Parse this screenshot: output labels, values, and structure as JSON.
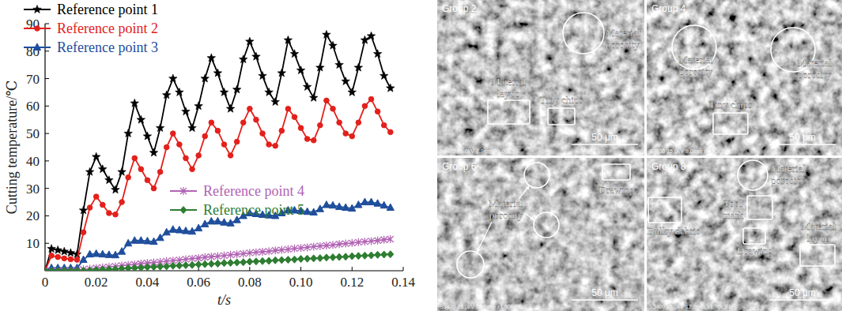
{
  "chart_data": {
    "type": "line",
    "x_label": "t/s",
    "y_label": "Cutting temperature/℃",
    "x": [
      0,
      0.0025,
      0.005,
      0.0075,
      0.01,
      0.0125,
      0.015,
      0.0175,
      0.02,
      0.0225,
      0.025,
      0.0275,
      0.03,
      0.0325,
      0.035,
      0.0375,
      0.04,
      0.0425,
      0.045,
      0.0475,
      0.05,
      0.0525,
      0.055,
      0.0575,
      0.06,
      0.0625,
      0.065,
      0.0675,
      0.07,
      0.0725,
      0.075,
      0.0775,
      0.08,
      0.0825,
      0.085,
      0.0875,
      0.09,
      0.0925,
      0.095,
      0.0975,
      0.1,
      0.1025,
      0.105,
      0.1075,
      0.11,
      0.1125,
      0.115,
      0.1175,
      0.12,
      0.1225,
      0.125,
      0.1275,
      0.13,
      0.1325,
      0.135
    ],
    "series": [
      {
        "name": "Reference point 1",
        "color": "#000000",
        "marker": "star",
        "values": [
          0,
          8,
          7.5,
          7,
          6.5,
          6,
          22,
          36,
          41.5,
          37,
          33,
          29.5,
          36,
          50,
          61,
          55,
          49,
          43,
          52,
          64,
          70,
          65,
          58,
          52,
          60,
          70,
          77.5,
          72,
          65,
          59,
          66,
          77,
          83.5,
          78,
          71,
          65,
          61.5,
          72,
          84,
          79,
          73,
          67,
          63,
          74,
          86,
          82,
          75,
          69,
          65,
          74,
          84,
          85.5,
          79,
          71,
          66.5
        ]
      },
      {
        "name": "Reference point 2",
        "color": "#e3201b",
        "marker": "circle",
        "values": [
          0,
          5.5,
          5,
          4.5,
          4.2,
          4,
          14,
          23,
          27,
          24,
          21,
          20.5,
          25,
          34,
          41,
          37,
          33,
          30,
          36,
          45,
          50,
          46,
          41,
          37,
          42,
          49,
          54,
          51,
          46,
          42,
          47,
          54,
          59,
          55,
          50,
          46,
          45.5,
          51,
          59,
          56,
          52,
          48,
          47.5,
          53,
          62,
          59,
          54,
          50,
          49,
          54,
          60,
          62.5,
          58,
          53,
          50.5
        ]
      },
      {
        "name": "Reference point 3",
        "color": "#1f4e9c",
        "marker": "triangle",
        "values": [
          0,
          1,
          1,
          1,
          1,
          1,
          4,
          6,
          6.2,
          6,
          5.8,
          5.7,
          7,
          10,
          11,
          11,
          10.8,
          10.6,
          12,
          14,
          15,
          14.8,
          14.5,
          14.3,
          15.5,
          17,
          18,
          18,
          17.6,
          17.3,
          18.5,
          20,
          21,
          20.7,
          20.4,
          20.2,
          20,
          21,
          22,
          22,
          21.8,
          21.5,
          21.3,
          22.5,
          24,
          23.8,
          23.3,
          23,
          22.7,
          24,
          25,
          25,
          24.5,
          23.8,
          23
        ]
      },
      {
        "name": "Reference point 4",
        "color": "#b163b4",
        "marker": "asterisk",
        "values": [
          0,
          0,
          0,
          0,
          0,
          0.2,
          0.5,
          0.7,
          1.0,
          1.2,
          1.4,
          1.6,
          1.9,
          2.1,
          2.3,
          2.6,
          2.8,
          3.0,
          3.2,
          3.5,
          3.7,
          3.9,
          4.2,
          4.4,
          4.6,
          4.9,
          5.1,
          5.3,
          5.5,
          5.8,
          6.0,
          6.2,
          6.5,
          6.7,
          6.9,
          7.1,
          7.4,
          7.6,
          7.8,
          8.1,
          8.3,
          8.5,
          8.8,
          9.0,
          9.2,
          9.4,
          9.7,
          9.9,
          10.1,
          10.4,
          10.6,
          10.8,
          11.0,
          11.3,
          11.5
        ]
      },
      {
        "name": "Reference point 5",
        "color": "#2e7d32",
        "marker": "diamond",
        "values": [
          0,
          0,
          0,
          0,
          0,
          0,
          0,
          0.1,
          0.3,
          0.4,
          0.5,
          0.6,
          0.8,
          0.9,
          1.0,
          1.1,
          1.3,
          1.4,
          1.5,
          1.6,
          1.8,
          1.9,
          2.0,
          2.1,
          2.3,
          2.4,
          2.5,
          2.6,
          2.8,
          2.9,
          3.0,
          3.1,
          3.3,
          3.4,
          3.5,
          3.6,
          3.8,
          3.9,
          4.0,
          4.1,
          4.3,
          4.4,
          4.5,
          4.6,
          4.8,
          4.9,
          5.0,
          5.1,
          5.3,
          5.4,
          5.5,
          5.6,
          5.8,
          5.9,
          6.0
        ]
      }
    ],
    "xlim": [
      0,
      0.14
    ],
    "xticks": [
      0,
      0.02,
      0.04,
      0.06,
      0.08,
      {
        "value": 0.1,
        "label": "0.10"
      },
      0.12,
      0.14
    ],
    "ylim": [
      0,
      90
    ],
    "yticks": [
      10,
      20,
      30,
      40,
      50,
      60,
      70,
      80,
      90
    ],
    "legend": "upper left"
  },
  "micrographs": [
    {
      "label": "Group 2",
      "info": "S3400 15.0kV 7.9mm x1.00k SE",
      "scale": "50 μm",
      "annotations": [
        "Material porosity",
        "Material layup",
        "Tiny chips"
      ]
    },
    {
      "label": "Group 4",
      "info": "S3400 15.0kV 9.0mm x1.00k SE",
      "scale": "50 μm",
      "annotations": [
        "Material porosity",
        "Material porosity",
        "Tiny chips"
      ]
    },
    {
      "label": "Group 6",
      "info": "S3400 15.0kV 11.6mm x1.00k SE",
      "scale": "50 μm",
      "annotations": [
        "Material porosity",
        "Drawing"
      ]
    },
    {
      "label": "Group 8",
      "info": "S3400 15.0kV 12.0mm x1.00k SE",
      "scale": "50 μm",
      "annotations": [
        "Material porosity",
        "Tool mark",
        "Bulky debris",
        "Drawing",
        "Material layup"
      ]
    }
  ]
}
